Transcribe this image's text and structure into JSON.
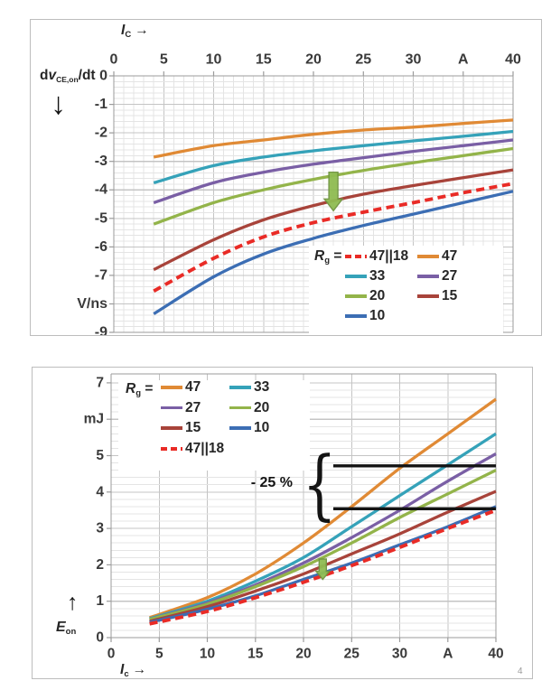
{
  "page": {
    "background": "#ffffff",
    "footnote_marker": "4"
  },
  "colors": {
    "orange": "#E08A35",
    "teal": "#35A2B9",
    "purple": "#7A5FA5",
    "green": "#93B44A",
    "brick": "#A8433A",
    "blue": "#3C6EB4",
    "red": "#E92B26",
    "arrow_fill": "#8FBC52",
    "arrow_stroke": "#6F9440",
    "grid_minor": "#E4E4E4",
    "grid_major": "#C4C4C4",
    "frame": "#9B9B9B",
    "axis_text": "#3A3A3A",
    "black_line": "#141414",
    "panel_border": "#BDBDBD",
    "footnote_text": "#9A9A9A"
  },
  "chart_data": [
    {
      "type": "line",
      "name": "dvce_on_dt_vs_ic",
      "title": "",
      "xlabel": {
        "main": "I",
        "sub": "C",
        "arrow": "→"
      },
      "ylabel": {
        "pre": "d",
        "it": "v",
        "sub": "CE,on",
        "post": "/dt",
        "arrow_glyph": "↓"
      },
      "xlim": [
        0,
        40
      ],
      "ylim": [
        -9,
        0
      ],
      "grid": true,
      "x_unit_tick": "A",
      "y_unit_tick": "V/ns",
      "x_ticks": [
        {
          "v": 0,
          "label": "0"
        },
        {
          "v": 5,
          "label": "5"
        },
        {
          "v": 10,
          "label": "10"
        },
        {
          "v": 15,
          "label": "15"
        },
        {
          "v": 20,
          "label": "20"
        },
        {
          "v": 25,
          "label": "25"
        },
        {
          "v": 30,
          "label": "30"
        },
        {
          "v": 35,
          "label": "A"
        },
        {
          "v": 40,
          "label": "40"
        }
      ],
      "y_ticks": [
        {
          "v": 0,
          "label": "0"
        },
        {
          "v": -1,
          "label": "-1"
        },
        {
          "v": -2,
          "label": "-2"
        },
        {
          "v": -3,
          "label": "-3"
        },
        {
          "v": -4,
          "label": "-4"
        },
        {
          "v": -5,
          "label": "-5"
        },
        {
          "v": -6,
          "label": "-6"
        },
        {
          "v": -7,
          "label": "-7"
        },
        {
          "v": -8,
          "label": "V/ns"
        },
        {
          "v": -9,
          "label": "-9"
        }
      ],
      "x": [
        4,
        10,
        15,
        20,
        25,
        30,
        35,
        40
      ],
      "series": [
        {
          "name": "47",
          "color_key": "orange",
          "dashed": false,
          "values": [
            -2.85,
            -2.45,
            -2.25,
            -2.05,
            -1.9,
            -1.8,
            -1.67,
            -1.55
          ]
        },
        {
          "name": "33",
          "color_key": "teal",
          "dashed": false,
          "values": [
            -3.75,
            -3.15,
            -2.85,
            -2.63,
            -2.45,
            -2.28,
            -2.12,
            -1.95
          ]
        },
        {
          "name": "27",
          "color_key": "purple",
          "dashed": false,
          "values": [
            -4.45,
            -3.75,
            -3.38,
            -3.1,
            -2.87,
            -2.65,
            -2.45,
            -2.25
          ]
        },
        {
          "name": "20",
          "color_key": "green",
          "dashed": false,
          "values": [
            -5.2,
            -4.45,
            -4.0,
            -3.63,
            -3.32,
            -3.05,
            -2.8,
            -2.55
          ]
        },
        {
          "name": "15",
          "color_key": "brick",
          "dashed": false,
          "values": [
            -6.8,
            -5.75,
            -5.05,
            -4.55,
            -4.15,
            -3.85,
            -3.57,
            -3.3
          ]
        },
        {
          "name": "47||18",
          "color_key": "red",
          "dashed": true,
          "values": [
            -7.55,
            -6.4,
            -5.65,
            -5.15,
            -4.78,
            -4.45,
            -4.1,
            -3.78
          ]
        },
        {
          "name": "10",
          "color_key": "blue",
          "dashed": false,
          "values": [
            -8.35,
            -7.05,
            -6.25,
            -5.7,
            -5.25,
            -4.85,
            -4.45,
            -4.05
          ]
        }
      ],
      "legend": {
        "prefix_main": "R",
        "prefix_sub": "g",
        "prefix_eq": "=",
        "position": "bottom-right",
        "rows": [
          [
            "47||18",
            "47"
          ],
          [
            "33",
            "27"
          ],
          [
            "20",
            "15"
          ],
          [
            "10"
          ]
        ]
      },
      "annotations": {
        "drop_arrow": {
          "x": 22,
          "y_from": -3.38,
          "y_to": -4.73
        }
      }
    },
    {
      "type": "line",
      "name": "eon_vs_ic",
      "title": "",
      "xlabel": {
        "main": "I",
        "sub": "c",
        "arrow": "→"
      },
      "ylabel": {
        "pre": "",
        "it": "E",
        "sub": "on",
        "post": "",
        "arrow_glyph": "↑"
      },
      "xlim": [
        0,
        40
      ],
      "ylim": [
        0,
        7
      ],
      "grid": true,
      "x_unit_tick": "A",
      "y_unit_tick": "mJ",
      "x_ticks": [
        {
          "v": 0,
          "label": "0"
        },
        {
          "v": 5,
          "label": "5"
        },
        {
          "v": 10,
          "label": "10"
        },
        {
          "v": 15,
          "label": "15"
        },
        {
          "v": 20,
          "label": "20"
        },
        {
          "v": 25,
          "label": "25"
        },
        {
          "v": 30,
          "label": "30"
        },
        {
          "v": 35,
          "label": "A"
        },
        {
          "v": 40,
          "label": "40"
        }
      ],
      "y_ticks": [
        {
          "v": 7,
          "label": "7"
        },
        {
          "v": 6,
          "label": "mJ"
        },
        {
          "v": 5,
          "label": "5"
        },
        {
          "v": 4,
          "label": "4"
        },
        {
          "v": 3,
          "label": "3"
        },
        {
          "v": 2,
          "label": "2"
        },
        {
          "v": 1,
          "label": "1"
        },
        {
          "v": 0,
          "label": "0"
        }
      ],
      "x": [
        4,
        10,
        15,
        20,
        25,
        30,
        35,
        40
      ],
      "series": [
        {
          "name": "47",
          "color_key": "orange",
          "dashed": false,
          "values": [
            0.55,
            1.1,
            1.75,
            2.6,
            3.6,
            4.65,
            5.6,
            6.55
          ]
        },
        {
          "name": "33",
          "color_key": "teal",
          "dashed": false,
          "values": [
            0.52,
            1.0,
            1.55,
            2.2,
            3.05,
            3.9,
            4.75,
            5.6
          ]
        },
        {
          "name": "27",
          "color_key": "purple",
          "dashed": false,
          "values": [
            0.5,
            0.95,
            1.45,
            2.05,
            2.75,
            3.5,
            4.3,
            5.05
          ]
        },
        {
          "name": "20",
          "color_key": "green",
          "dashed": false,
          "values": [
            0.5,
            0.92,
            1.4,
            1.95,
            2.6,
            3.3,
            3.95,
            4.6
          ]
        },
        {
          "name": "15",
          "color_key": "brick",
          "dashed": false,
          "values": [
            0.45,
            0.85,
            1.28,
            1.75,
            2.3,
            2.85,
            3.45,
            4.02
          ]
        },
        {
          "name": "10",
          "color_key": "blue",
          "dashed": false,
          "values": [
            0.42,
            0.78,
            1.15,
            1.6,
            2.05,
            2.55,
            3.05,
            3.6
          ]
        },
        {
          "name": "47||18",
          "color_key": "red",
          "dashed": true,
          "values": [
            0.38,
            0.72,
            1.1,
            1.52,
            1.98,
            2.48,
            3.0,
            3.5
          ]
        }
      ],
      "legend": {
        "prefix_main": "R",
        "prefix_sub": "g",
        "prefix_eq": "=",
        "position": "top-left",
        "rows": [
          [
            "47",
            "33"
          ],
          [
            "27",
            "20"
          ],
          [
            "15",
            "10"
          ],
          [
            "47||18"
          ]
        ]
      },
      "annotations": {
        "drop_arrow": {
          "x": 22,
          "y_from": 2.16,
          "y_to": 1.6
        },
        "reduction": {
          "label": "- 25 %",
          "brace_glyph": "{",
          "y_top": 4.72,
          "y_bottom": 3.54,
          "x_start": 23.1,
          "x_end": 40
        }
      }
    }
  ]
}
